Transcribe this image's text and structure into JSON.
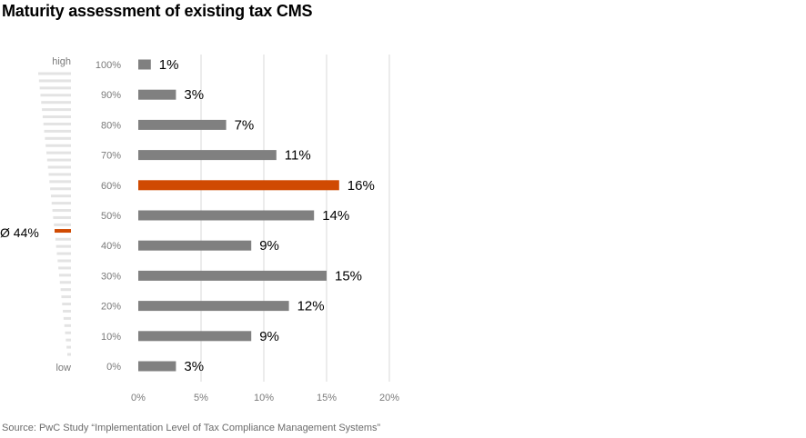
{
  "title": "Maturity assessment of existing tax CMS",
  "source": "Source: PwC Study “Implementation Level of Tax Compliance Management Systems”",
  "gauge": {
    "high_label": "high",
    "low_label": "low",
    "average_label": "Ø 44%",
    "average_value": 44
  },
  "colors": {
    "bar": "#808080",
    "highlight": "#d04a02",
    "grid": "#d9d9d9",
    "gauge": "#e3e3e3"
  },
  "chart_data": {
    "type": "bar",
    "orientation": "horizontal",
    "title": "Maturity assessment of existing tax CMS",
    "categories": [
      "100%",
      "90%",
      "80%",
      "70%",
      "60%",
      "50%",
      "40%",
      "30%",
      "20%",
      "10%",
      "0%"
    ],
    "values": [
      1,
      3,
      7,
      11,
      16,
      14,
      9,
      15,
      12,
      9,
      3
    ],
    "value_labels": [
      "1%",
      "3%",
      "7%",
      "11%",
      "16%",
      "14%",
      "9%",
      "15%",
      "12%",
      "9%",
      "3%"
    ],
    "highlight_category": "60%",
    "xlim": [
      0,
      20
    ],
    "xticks": [
      "0%",
      "5%",
      "10%",
      "15%",
      "20%"
    ],
    "xtick_values": [
      0,
      5,
      10,
      15,
      20
    ],
    "grid": true,
    "legend": "none"
  }
}
